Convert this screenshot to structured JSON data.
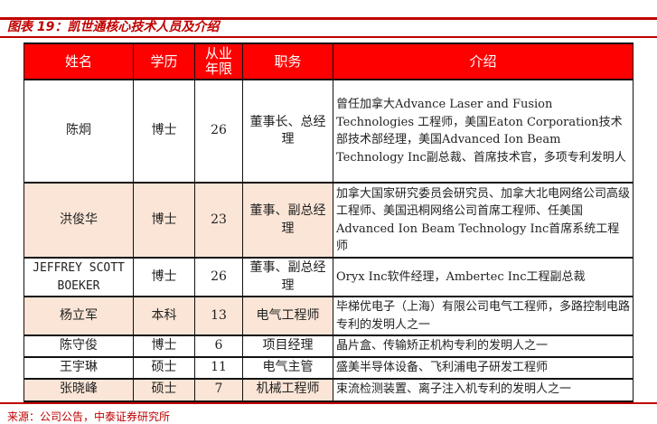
{
  "title": "图表 19：凯世通核心技术人员及介绍",
  "headers": [
    "姓名",
    "学历",
    "从业年限",
    "职务",
    "介绍"
  ],
  "rows": [
    {
      "name": "陈炯",
      "edu": "博士",
      "years": "26",
      "role": "董事长、总经理",
      "intro": "曾任加拿大Advance Laser and Fusion Technologies 工程师，美国Eaton Corporation技术部技术部经理，美国Advanced Ion Beam Technology Inc副总裁、首席技术官，多项专利发明人",
      "highlight": false
    },
    {
      "name": "洪俊华",
      "edu": "博士",
      "years": "23",
      "role": "董事、副总经理",
      "intro": "加拿大国家研究委员会研究员、加拿大北电网络公司高级工程师、美国迅桐网络公司首席工程师、任美国Advanced Ion Beam Technology Inc首席系统工程师",
      "highlight": true
    },
    {
      "name": "JEFFREY SCOTT BOEKER",
      "edu": "博士",
      "years": "26",
      "role": "董事、副总经理",
      "intro": "Oryx Inc软件经理，Ambertec Inc工程副总裁",
      "highlight": false
    },
    {
      "name": "杨立军",
      "edu": "本科",
      "years": "13",
      "role": "电气工程师",
      "intro": "毕梯优电子（上海）有限公司电气工程师，多路控制电路专利的发明人之一",
      "highlight": true
    },
    {
      "name": "陈守俊",
      "edu": "博士",
      "years": "6",
      "role": "项目经理",
      "intro": "晶片盒、传输矫正机构专利的发明人之一",
      "highlight": false
    },
    {
      "name": "王宇琳",
      "edu": "硕士",
      "years": "11",
      "role": "电气主管",
      "intro": "盛美半导体设备、飞利浦电子研发工程师",
      "highlight": false
    },
    {
      "name": "张晓峰",
      "edu": "硕士",
      "years": "7",
      "role": "机械工程师",
      "intro": "束流检测装置、离子注入机专利的发明人之一",
      "highlight": true
    }
  ],
  "source": "来源：公司公告，中泰证券研究所",
  "colors": {
    "accent": "#c00000",
    "header_bg": "#ff0000",
    "highlight_bg": "#fbe5d6"
  }
}
